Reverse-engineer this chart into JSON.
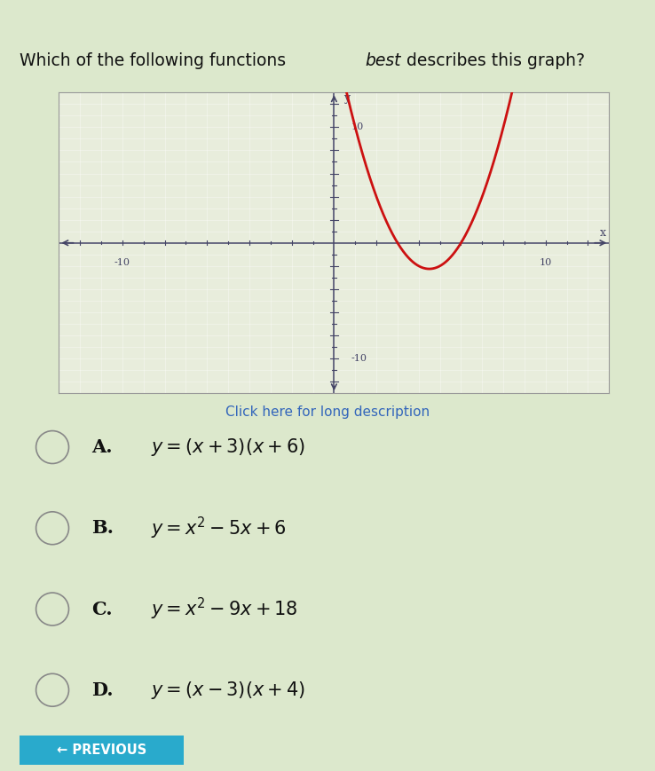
{
  "graph_xlim": [
    -13,
    13
  ],
  "graph_ylim": [
    -13,
    13
  ],
  "curve_color": "#cc1111",
  "curve_linewidth": 2.0,
  "axis_color": "#444466",
  "tick_color": "#444466",
  "graph_bg": "#e8eddc",
  "outer_bg": "#dce8cc",
  "link_color": "#3366bb",
  "link_text": "Click here for long description",
  "options": [
    {
      "label": "A.",
      "formula": "$y = (x+3)(x+6)$"
    },
    {
      "label": "B.",
      "formula": "$y = x^2 - 5x + 6$"
    },
    {
      "label": "C.",
      "formula": "$y = x^2 - 9x + 18$"
    },
    {
      "label": "D.",
      "formula": "$y = (x-3)(x+4)$"
    }
  ],
  "parabola_roots": [
    3,
    6
  ],
  "prev_button_color": "#29aacc",
  "prev_button_text": "← PREVIOUS",
  "option_text_color": "#111111",
  "circle_color": "#888888",
  "sep_color": "#bbbbbb",
  "header_color": "#555555"
}
